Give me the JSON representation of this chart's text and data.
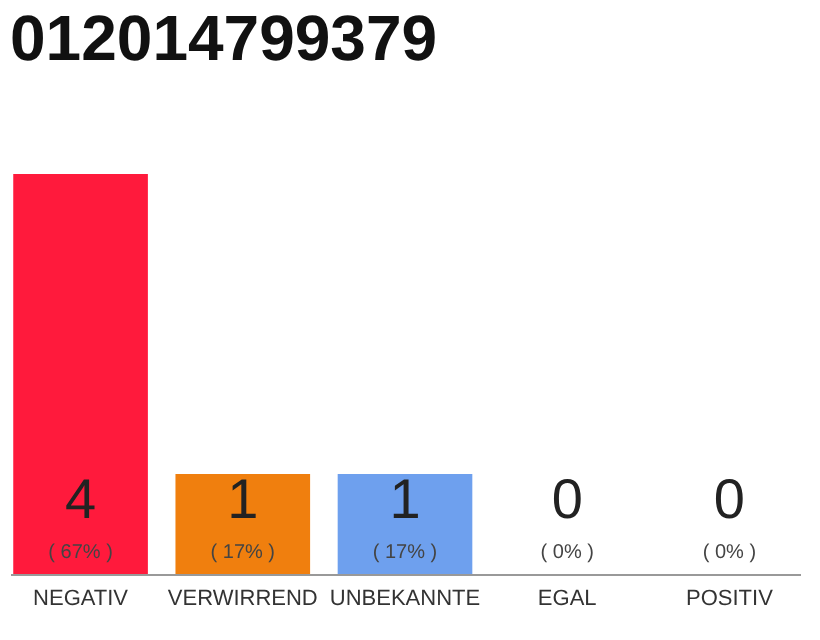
{
  "chart_data": {
    "type": "bar",
    "title": "012014799379",
    "categories": [
      "NEGATIV",
      "VERWIRREND",
      "UNBEKANNTE",
      "EGAL",
      "POSITIV"
    ],
    "values": [
      4,
      1,
      1,
      0,
      0
    ],
    "colors": [
      "#ff1a3c",
      "#f07f0e",
      "#6ea0ee",
      "#dddddd",
      "#dddddd"
    ],
    "value_labels": [
      "4",
      "1",
      "1",
      "0",
      "0"
    ],
    "annotations": [
      {
        "text": "( 67% )",
        "x": "NEGATIV",
        "y": 0
      },
      {
        "text": "( 17% )",
        "x": "VERWIRREND",
        "y": 0
      },
      {
        "text": "( 17% )",
        "x": "UNBEKANNTE",
        "y": 0
      },
      {
        "text": "( 0% )",
        "x": "EGAL",
        "y": 0
      },
      {
        "text": "( 0% )",
        "x": "POSITIV",
        "y": 0
      }
    ],
    "grid": false,
    "legend": false
  }
}
